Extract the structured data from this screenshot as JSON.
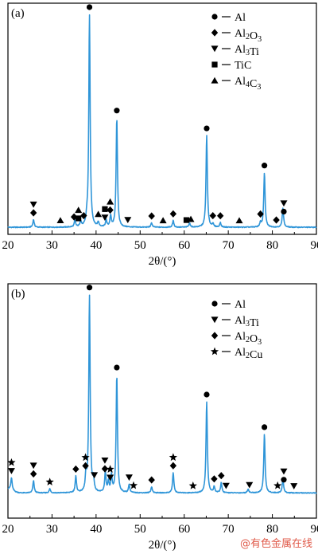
{
  "watermark": "@有色金属在线",
  "chart_data": [
    {
      "type": "line",
      "panel_label": "(a)",
      "xlabel": "2θ/(°)",
      "xlim": [
        20,
        90
      ],
      "x_ticks": [
        20,
        30,
        40,
        50,
        60,
        70,
        80,
        90
      ],
      "series": [
        {
          "color": "#2f95d8",
          "peaks": [
            {
              "x": 25.8,
              "h": 0.035
            },
            {
              "x": 35.2,
              "h": 0.03
            },
            {
              "x": 36.5,
              "h": 0.025
            },
            {
              "x": 37.9,
              "h": 0.03
            },
            {
              "x": 38.5,
              "h": 0.97
            },
            {
              "x": 40.5,
              "h": 0.02
            },
            {
              "x": 42.3,
              "h": 0.03
            },
            {
              "x": 43.3,
              "h": 0.05
            },
            {
              "x": 44.7,
              "h": 0.5
            },
            {
              "x": 52.6,
              "h": 0.02
            },
            {
              "x": 57.5,
              "h": 0.03
            },
            {
              "x": 61.2,
              "h": 0.02
            },
            {
              "x": 65.1,
              "h": 0.42
            },
            {
              "x": 66.5,
              "h": 0.015
            },
            {
              "x": 68.2,
              "h": 0.02
            },
            {
              "x": 77.3,
              "h": 0.02
            },
            {
              "x": 78.2,
              "h": 0.25
            },
            {
              "x": 82.4,
              "h": 0.09
            }
          ]
        }
      ],
      "legend": [
        {
          "marker": "circle",
          "label": "Al"
        },
        {
          "marker": "diamond",
          "label": "Al2O3"
        },
        {
          "marker": "triangle-down",
          "label": "Al3Ti"
        },
        {
          "marker": "square",
          "label": "TiC"
        },
        {
          "marker": "triangle-up",
          "label": "Al4C3"
        }
      ],
      "peak_markers": [
        {
          "x": 25.8,
          "stack": [
            "triangle-down",
            "diamond"
          ]
        },
        {
          "x": 31.9,
          "stack": [
            "triangle-up"
          ]
        },
        {
          "x": 35.0,
          "stack": [
            "diamond"
          ]
        },
        {
          "x": 36.0,
          "stack": [
            "triangle-up",
            "square"
          ]
        },
        {
          "x": 37.2,
          "stack": [
            "diamond"
          ]
        },
        {
          "x": 38.5,
          "stack": [
            "circle"
          ]
        },
        {
          "x": 40.5,
          "stack": [
            "triangle-up"
          ]
        },
        {
          "x": 42.0,
          "stack": [
            "square",
            "triangle-down"
          ]
        },
        {
          "x": 43.2,
          "stack": [
            "triangle-up",
            "diamond"
          ]
        },
        {
          "x": 44.7,
          "stack": [
            "circle"
          ]
        },
        {
          "x": 47.2,
          "stack": [
            "triangle-down"
          ]
        },
        {
          "x": 52.6,
          "stack": [
            "diamond"
          ]
        },
        {
          "x": 55.2,
          "stack": [
            "triangle-up"
          ]
        },
        {
          "x": 57.5,
          "stack": [
            "diamond"
          ]
        },
        {
          "x": 60.5,
          "stack": [
            "square"
          ]
        },
        {
          "x": 61.5,
          "stack": [
            "triangle-up"
          ]
        },
        {
          "x": 65.1,
          "stack": [
            "circle"
          ]
        },
        {
          "x": 66.5,
          "stack": [
            "diamond"
          ]
        },
        {
          "x": 68.2,
          "stack": [
            "diamond"
          ]
        },
        {
          "x": 72.5,
          "stack": [
            "triangle-up"
          ]
        },
        {
          "x": 77.3,
          "stack": [
            "diamond"
          ]
        },
        {
          "x": 78.2,
          "stack": [
            "circle"
          ]
        },
        {
          "x": 80.9,
          "stack": [
            "diamond"
          ]
        },
        {
          "x": 82.6,
          "stack": [
            "triangle-down",
            "circle"
          ]
        }
      ]
    },
    {
      "type": "line",
      "panel_label": "(b)",
      "xlabel": "2θ/(°)",
      "xlim": [
        20,
        90
      ],
      "x_ticks": [
        20,
        30,
        40,
        50,
        60,
        70,
        80,
        90
      ],
      "series": [
        {
          "color": "#2f95d8",
          "peaks": [
            {
              "x": 20.8,
              "h": 0.06
            },
            {
              "x": 25.8,
              "h": 0.06
            },
            {
              "x": 29.5,
              "h": 0.02
            },
            {
              "x": 35.4,
              "h": 0.08
            },
            {
              "x": 37.7,
              "h": 0.08
            },
            {
              "x": 38.5,
              "h": 0.97
            },
            {
              "x": 39.4,
              "h": 0.06
            },
            {
              "x": 42.1,
              "h": 0.1
            },
            {
              "x": 42.8,
              "h": 0.05
            },
            {
              "x": 43.5,
              "h": 0.08
            },
            {
              "x": 44.7,
              "h": 0.58
            },
            {
              "x": 47.5,
              "h": 0.04
            },
            {
              "x": 52.6,
              "h": 0.03
            },
            {
              "x": 57.5,
              "h": 0.1
            },
            {
              "x": 65.1,
              "h": 0.45
            },
            {
              "x": 66.8,
              "h": 0.03
            },
            {
              "x": 68.4,
              "h": 0.05
            },
            {
              "x": 74.5,
              "h": 0.02
            },
            {
              "x": 78.2,
              "h": 0.29
            },
            {
              "x": 82.4,
              "h": 0.07
            }
          ]
        }
      ],
      "legend": [
        {
          "marker": "circle",
          "label": "Al"
        },
        {
          "marker": "triangle-down",
          "label": "Al3Ti"
        },
        {
          "marker": "diamond",
          "label": "Al2O3"
        },
        {
          "marker": "star",
          "label": "Al2Cu"
        }
      ],
      "peak_markers": [
        {
          "x": 20.8,
          "stack": [
            "star",
            "triangle-down"
          ]
        },
        {
          "x": 25.8,
          "stack": [
            "triangle-down",
            "diamond"
          ]
        },
        {
          "x": 29.5,
          "stack": [
            "star"
          ]
        },
        {
          "x": 35.4,
          "stack": [
            "diamond"
          ]
        },
        {
          "x": 37.6,
          "stack": [
            "star",
            "diamond"
          ]
        },
        {
          "x": 38.5,
          "stack": [
            "circle"
          ]
        },
        {
          "x": 39.6,
          "stack": [
            "triangle-down"
          ]
        },
        {
          "x": 42.0,
          "stack": [
            "triangle-down",
            "diamond"
          ]
        },
        {
          "x": 43.2,
          "stack": [
            "star",
            "triangle-down"
          ]
        },
        {
          "x": 44.7,
          "stack": [
            "circle"
          ]
        },
        {
          "x": 47.5,
          "stack": [
            "triangle-down"
          ]
        },
        {
          "x": 48.5,
          "stack": [
            "star"
          ]
        },
        {
          "x": 52.6,
          "stack": [
            "diamond"
          ]
        },
        {
          "x": 57.5,
          "stack": [
            "star",
            "diamond"
          ]
        },
        {
          "x": 62.0,
          "stack": [
            "star"
          ]
        },
        {
          "x": 65.1,
          "stack": [
            "circle"
          ]
        },
        {
          "x": 66.8,
          "stack": [
            "diamond"
          ]
        },
        {
          "x": 68.4,
          "stack": [
            "diamond"
          ]
        },
        {
          "x": 69.5,
          "stack": [
            "triangle-down"
          ]
        },
        {
          "x": 74.8,
          "stack": [
            "triangle-down"
          ]
        },
        {
          "x": 78.2,
          "stack": [
            "circle"
          ]
        },
        {
          "x": 81.2,
          "stack": [
            "star"
          ]
        },
        {
          "x": 82.6,
          "stack": [
            "triangle-down",
            "circle"
          ]
        },
        {
          "x": 84.9,
          "stack": [
            "triangle-down"
          ]
        }
      ]
    }
  ]
}
